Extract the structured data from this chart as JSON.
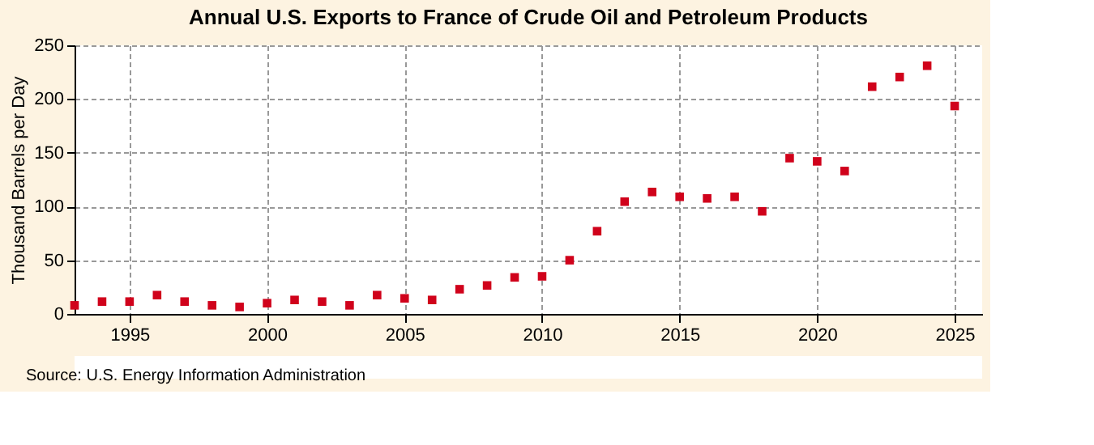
{
  "chart_data": {
    "type": "scatter",
    "title": "Annual U.S. Exports to France of Crude Oil and Petroleum Products",
    "ylabel": "Thousand Barrels per Day",
    "x": [
      1993,
      1994,
      1995,
      1996,
      1997,
      1998,
      1999,
      2000,
      2001,
      2002,
      2003,
      2004,
      2005,
      2006,
      2007,
      2008,
      2009,
      2010,
      2011,
      2012,
      2013,
      2014,
      2015,
      2016,
      2017,
      2018,
      2019,
      2020,
      2021,
      2022,
      2023,
      2024,
      2025
    ],
    "series": [
      {
        "color": "#d0021b",
        "values": [
          8,
          11.5,
          11.5,
          17.5,
          11.5,
          8,
          6.5,
          10,
          13,
          11.5,
          8,
          17.5,
          14.5,
          13,
          23,
          26.5,
          34,
          35,
          50,
          77,
          104.5,
          113.5,
          109,
          107.5,
          109,
          95.5,
          145,
          142,
          133,
          211.5,
          220.5,
          231,
          193.5
        ]
      }
    ],
    "xlim": [
      1993,
      2026
    ],
    "xticks": [
      1995,
      2000,
      2005,
      2010,
      2015,
      2020,
      2025
    ],
    "ylim": [
      0,
      250
    ],
    "yticks": [
      0,
      50,
      100,
      150,
      200,
      250
    ],
    "grid": true,
    "marker": "square",
    "annotations": [
      "Source: U.S. Energy Information Administration"
    ]
  }
}
